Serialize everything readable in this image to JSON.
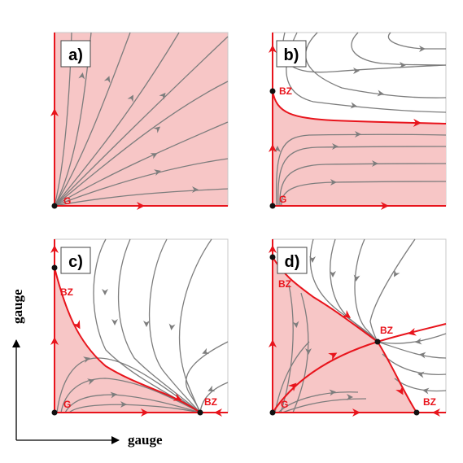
{
  "panels": [
    {
      "id": "a",
      "label": "a)",
      "points": [
        {
          "name": "G",
          "text": "G"
        }
      ]
    },
    {
      "id": "b",
      "label": "b)",
      "points": [
        {
          "name": "G",
          "text": "G"
        },
        {
          "name": "BZ",
          "text": "BZ"
        }
      ]
    },
    {
      "id": "c",
      "label": "c)",
      "points": [
        {
          "name": "G",
          "text": "G"
        },
        {
          "name": "BZ-top",
          "text": "BZ"
        },
        {
          "name": "BZ-right",
          "text": "BZ"
        }
      ]
    },
    {
      "id": "d",
      "label": "d)",
      "points": [
        {
          "name": "G",
          "text": "G"
        },
        {
          "name": "BZ-top",
          "text": "BZ"
        },
        {
          "name": "BZ-center",
          "text": "BZ"
        },
        {
          "name": "BZ-right",
          "text": "BZ"
        }
      ]
    }
  ],
  "axes": {
    "x_label": "gauge",
    "y_label": "gauge"
  },
  "colors": {
    "basin_fill": "#f7c6c6",
    "separatrix": "#e8141c",
    "flow": "#7d7d7d",
    "frame": "#c8c8c8",
    "text": "#000000"
  }
}
